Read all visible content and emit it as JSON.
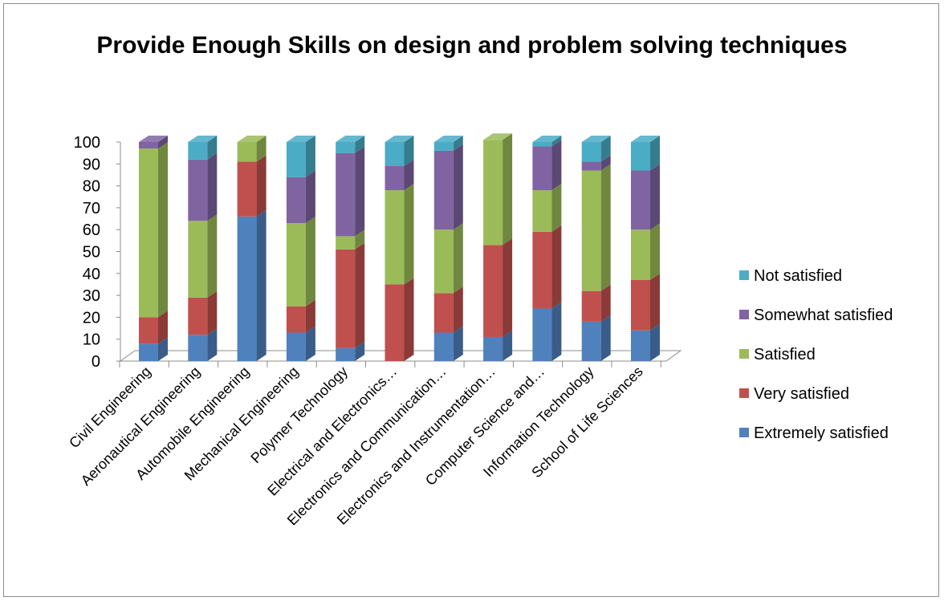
{
  "chart_data": {
    "type": "bar",
    "stacked": true,
    "three_d": true,
    "title": "Provide Enough Skills on design and problem solving techniques",
    "xlabel": "",
    "ylabel": "",
    "ylim": [
      0,
      100
    ],
    "yticks": [
      0,
      10,
      20,
      30,
      40,
      50,
      60,
      70,
      80,
      90,
      100
    ],
    "grid": false,
    "legend_position": "right",
    "categories": [
      "Civil Engineering",
      "Aeronautical Engineering",
      "Automobile Engineering",
      "Mechanical Engineering",
      "Polymer Technology",
      "Electrical and Electronics…",
      "Electronics and Communication…",
      "Electronics and Instrumentation…",
      "Computer Science and…",
      "Information Technology",
      "School of Life Sciences"
    ],
    "series": [
      {
        "name": "Extremely satisfied",
        "color": "#4f81bd",
        "values": [
          8,
          12,
          66,
          13,
          6,
          0,
          13,
          11,
          24,
          18,
          14
        ]
      },
      {
        "name": "Very satisfied",
        "color": "#c0504d",
        "values": [
          12,
          17,
          25,
          12,
          45,
          35,
          18,
          42,
          35,
          14,
          23
        ]
      },
      {
        "name": "Satisfied",
        "color": "#9bbb59",
        "values": [
          77,
          35,
          9,
          38,
          6,
          43,
          29,
          48,
          19,
          55,
          23
        ]
      },
      {
        "name": "Somewhat satisfied",
        "color": "#8064a2",
        "values": [
          3,
          28,
          0,
          21,
          38,
          11,
          36,
          0,
          20,
          4,
          27
        ]
      },
      {
        "name": "Not satisfied",
        "color": "#4bacc6",
        "values": [
          0,
          8,
          0,
          16,
          5,
          11,
          4,
          0,
          2,
          9,
          13
        ]
      }
    ]
  }
}
